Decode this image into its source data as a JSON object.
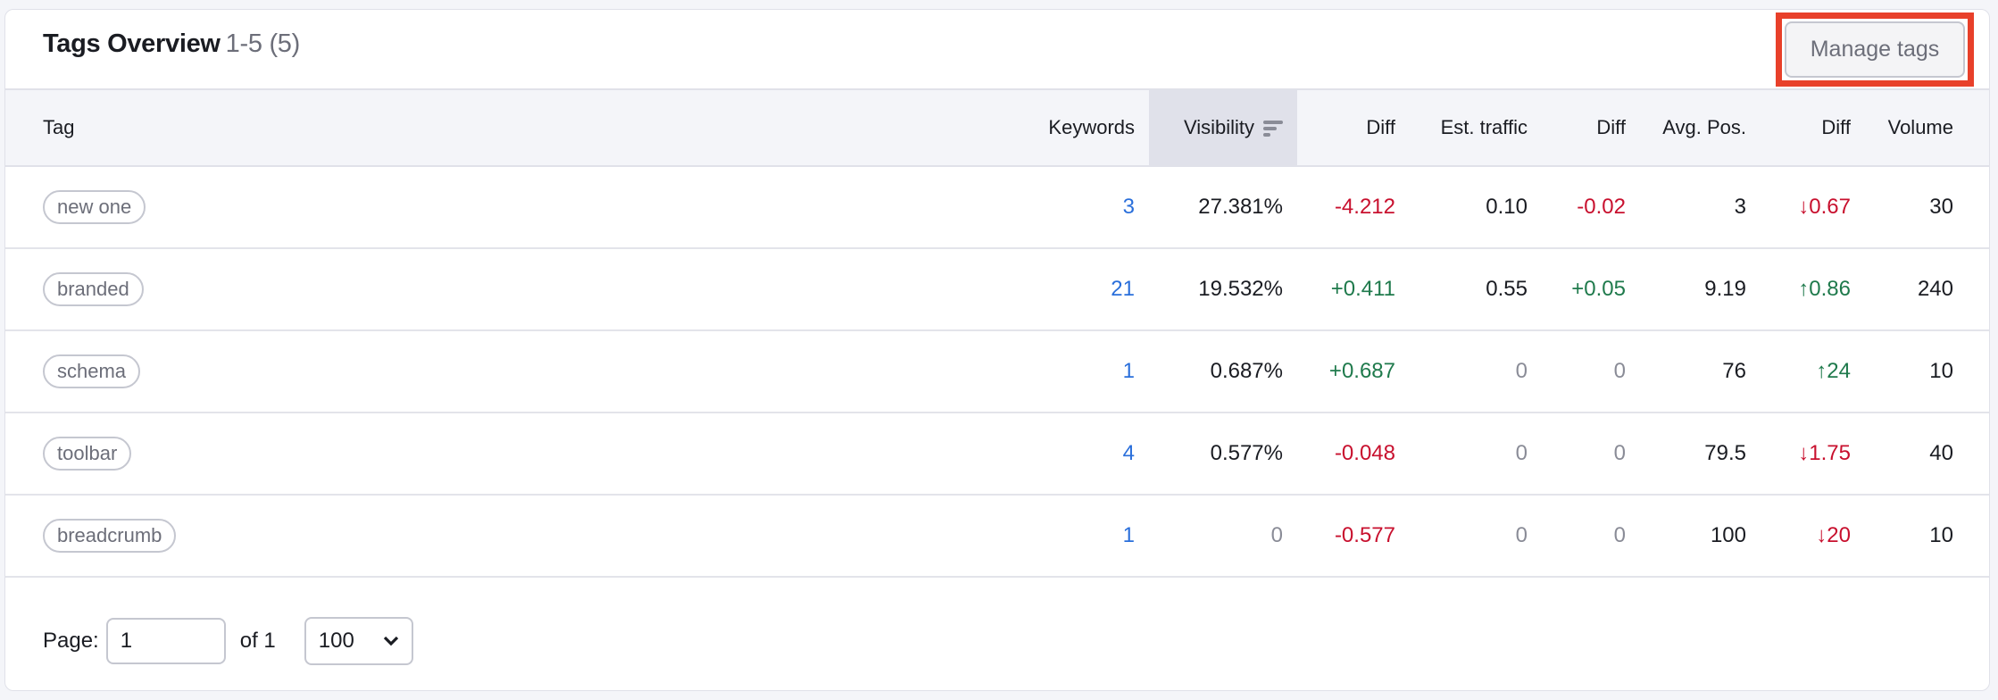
{
  "header": {
    "title": "Tags Overview",
    "range": "1-5 (5)",
    "manage_tags": "Manage tags"
  },
  "columns": [
    "Tag",
    "Keywords",
    "Visibility",
    "Diff",
    "Est. traffic",
    "Diff",
    "Avg. Pos.",
    "Diff",
    "Volume"
  ],
  "sorted_column": "Visibility",
  "rows": [
    {
      "tag": "new one",
      "keywords": "3",
      "visibility": "27.381%",
      "vis_diff": "-4.212",
      "traffic": "0.10",
      "traffic_diff": "-0.02",
      "avg_pos": "3",
      "pos_diff": "↓0.67",
      "volume": "30"
    },
    {
      "tag": "branded",
      "keywords": "21",
      "visibility": "19.532%",
      "vis_diff": "+0.411",
      "traffic": "0.55",
      "traffic_diff": "+0.05",
      "avg_pos": "9.19",
      "pos_diff": "↑0.86",
      "volume": "240"
    },
    {
      "tag": "schema",
      "keywords": "1",
      "visibility": "0.687%",
      "vis_diff": "+0.687",
      "traffic": "0",
      "traffic_diff": "0",
      "avg_pos": "76",
      "pos_diff": "↑24",
      "volume": "10"
    },
    {
      "tag": "toolbar",
      "keywords": "4",
      "visibility": "0.577%",
      "vis_diff": "-0.048",
      "traffic": "0",
      "traffic_diff": "0",
      "avg_pos": "79.5",
      "pos_diff": "↓1.75",
      "volume": "40"
    },
    {
      "tag": "breadcrumb",
      "keywords": "1",
      "visibility": "0",
      "vis_diff": "-0.577",
      "traffic": "0",
      "traffic_diff": "0",
      "avg_pos": "100",
      "pos_diff": "↓20",
      "volume": "10"
    }
  ],
  "pagination": {
    "page_label": "Page:",
    "page_value": "1",
    "of_label": "of 1",
    "per_page": "100"
  },
  "colors": {
    "negative": "#c8102e",
    "positive": "#1f7a4c",
    "link": "#2a6fdb",
    "highlight": "#e8402a"
  }
}
